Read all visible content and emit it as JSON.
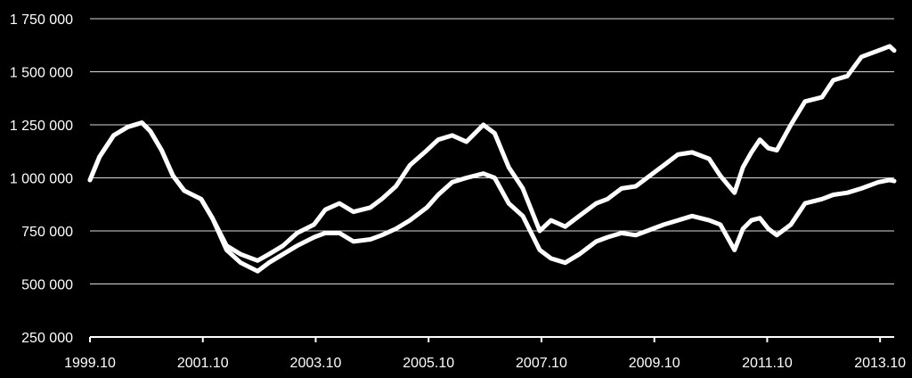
{
  "chart_data": {
    "type": "line",
    "title": "",
    "xlabel": "",
    "ylabel": "",
    "xlim": [
      1999.83,
      2014.08
    ],
    "ylim": [
      250000,
      1750000
    ],
    "yticks": [
      {
        "value": 250000,
        "label": "250 000"
      },
      {
        "value": 500000,
        "label": "500 000"
      },
      {
        "value": 750000,
        "label": "750 000"
      },
      {
        "value": 1000000,
        "label": "1 000 000"
      },
      {
        "value": 1250000,
        "label": "1 250 000"
      },
      {
        "value": 1500000,
        "label": "1 500 000"
      },
      {
        "value": 1750000,
        "label": "1 750 000"
      }
    ],
    "xticks": [
      {
        "value": 1999.83,
        "label": "1999.10"
      },
      {
        "value": 2001.83,
        "label": "2001.10"
      },
      {
        "value": 2003.83,
        "label": "2003.10"
      },
      {
        "value": 2005.83,
        "label": "2005.10"
      },
      {
        "value": 2007.83,
        "label": "2007.10"
      },
      {
        "value": 2009.83,
        "label": "2009.10"
      },
      {
        "value": 2011.83,
        "label": "2011.10"
      },
      {
        "value": 2013.83,
        "label": "2013.10"
      }
    ],
    "grid": true,
    "legend": "none",
    "colors": {
      "background": "#000000",
      "series": "#ffffff",
      "grid": "#d9d9d9",
      "text": "#ffffff"
    },
    "series": [
      {
        "x": [
          1999.83,
          2000.0,
          2000.25,
          2000.5,
          2000.75,
          2000.9,
          2001.1,
          2001.3,
          2001.5,
          2001.8,
          2002.0,
          2002.25,
          2002.5,
          2002.8,
          2003.0,
          2003.25,
          2003.5,
          2003.8,
          2004.0,
          2004.25,
          2004.5,
          2004.8,
          2005.0,
          2005.25,
          2005.5,
          2005.8,
          2006.0,
          2006.25,
          2006.5,
          2006.8,
          2007.0,
          2007.25,
          2007.5,
          2007.8,
          2008.0,
          2008.25,
          2008.5,
          2008.8,
          2009.0,
          2009.25,
          2009.5,
          2009.8,
          2010.0,
          2010.25,
          2010.5,
          2010.8,
          2011.0,
          2011.25,
          2011.4,
          2011.55,
          2011.7,
          2011.85,
          2012.0,
          2012.25,
          2012.5,
          2012.8,
          2013.0,
          2013.25,
          2013.5,
          2013.8,
          2014.0,
          2014.08
        ],
        "values": [
          990000,
          1100000,
          1200000,
          1240000,
          1260000,
          1220000,
          1130000,
          1010000,
          940000,
          900000,
          810000,
          680000,
          640000,
          610000,
          640000,
          680000,
          740000,
          780000,
          850000,
          880000,
          840000,
          860000,
          900000,
          960000,
          1060000,
          1130000,
          1180000,
          1200000,
          1170000,
          1250000,
          1210000,
          1050000,
          950000,
          750000,
          800000,
          770000,
          820000,
          880000,
          900000,
          950000,
          960000,
          1020000,
          1060000,
          1110000,
          1120000,
          1090000,
          1010000,
          930000,
          1050000,
          1120000,
          1180000,
          1140000,
          1130000,
          1250000,
          1360000,
          1380000,
          1460000,
          1480000,
          1570000,
          1600000,
          1620000,
          1600000
        ]
      },
      {
        "x": [
          1999.83,
          2000.0,
          2000.25,
          2000.5,
          2000.75,
          2000.9,
          2001.1,
          2001.3,
          2001.5,
          2001.8,
          2002.0,
          2002.25,
          2002.5,
          2002.8,
          2003.0,
          2003.25,
          2003.5,
          2003.8,
          2004.0,
          2004.25,
          2004.5,
          2004.8,
          2005.0,
          2005.25,
          2005.5,
          2005.8,
          2006.0,
          2006.25,
          2006.5,
          2006.8,
          2007.0,
          2007.25,
          2007.5,
          2007.8,
          2008.0,
          2008.25,
          2008.5,
          2008.8,
          2009.0,
          2009.25,
          2009.5,
          2009.8,
          2010.0,
          2010.25,
          2010.5,
          2010.8,
          2011.0,
          2011.25,
          2011.4,
          2011.55,
          2011.7,
          2011.85,
          2012.0,
          2012.25,
          2012.5,
          2012.8,
          2013.0,
          2013.25,
          2013.5,
          2013.8,
          2014.0,
          2014.08
        ],
        "values": [
          990000,
          1100000,
          1200000,
          1240000,
          1260000,
          1220000,
          1130000,
          1010000,
          940000,
          900000,
          810000,
          660000,
          600000,
          560000,
          600000,
          640000,
          680000,
          720000,
          740000,
          740000,
          700000,
          710000,
          730000,
          760000,
          800000,
          860000,
          920000,
          980000,
          1000000,
          1020000,
          1000000,
          880000,
          820000,
          660000,
          620000,
          600000,
          640000,
          700000,
          720000,
          740000,
          730000,
          760000,
          780000,
          800000,
          820000,
          800000,
          780000,
          660000,
          760000,
          800000,
          810000,
          760000,
          730000,
          780000,
          880000,
          900000,
          920000,
          930000,
          950000,
          980000,
          990000,
          985000
        ]
      }
    ]
  }
}
